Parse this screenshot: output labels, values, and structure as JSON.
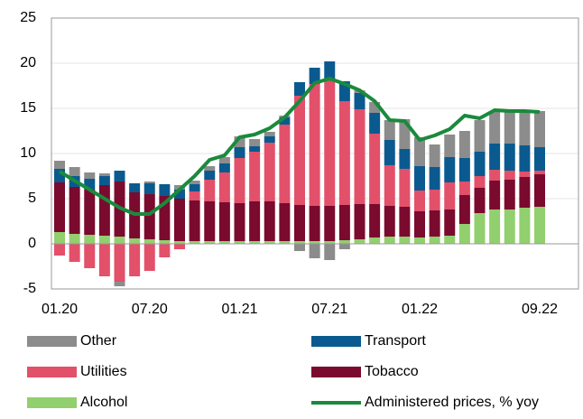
{
  "chart_data": {
    "type": "bar",
    "categories": [
      "01.20",
      null,
      null,
      null,
      null,
      null,
      "07.20",
      null,
      null,
      null,
      null,
      null,
      "01.21",
      null,
      null,
      null,
      null,
      null,
      "07.21",
      null,
      null,
      null,
      null,
      null,
      "01.22",
      null,
      null,
      null,
      null,
      null,
      null,
      null,
      "09.22"
    ],
    "stacked": true,
    "series": [
      {
        "name": "Other",
        "color": "#8c8c8c",
        "values": [
          0.9,
          1.0,
          0.7,
          0.3,
          -0.5,
          0,
          0.2,
          0,
          0.5,
          0.4,
          0.5,
          0.7,
          1.2,
          0.8,
          0.5,
          0.2,
          -0.8,
          -1.6,
          -1.8,
          -0.6,
          0.3,
          1.2,
          2.2,
          3.3,
          3.2,
          2.5,
          2.5,
          3.0,
          3.5,
          3.6,
          3.6,
          3.8,
          4.0
        ]
      },
      {
        "name": "Transport",
        "color": "#0b5a8f",
        "values": [
          1.5,
          1.2,
          1.2,
          1.0,
          1.2,
          1.0,
          1.2,
          1.3,
          1.0,
          0.8,
          1.0,
          1.0,
          1.2,
          0.6,
          0.7,
          0.8,
          1.5,
          1.8,
          1.9,
          2.2,
          1.8,
          2.3,
          2.8,
          2.2,
          2.7,
          2.5,
          2.8,
          2.6,
          2.7,
          2.9,
          3.0,
          2.9,
          2.6
        ]
      },
      {
        "name": "Utilities",
        "color": "#e2506a",
        "values": [
          -1.3,
          -2.0,
          -2.7,
          -3.6,
          -4.2,
          -3.6,
          -3.0,
          -1.5,
          -0.6,
          1.0,
          2.4,
          3.3,
          5.0,
          5.5,
          6.5,
          8.7,
          12.1,
          13.5,
          14.1,
          11.5,
          10.5,
          7.8,
          4.5,
          4.2,
          2.3,
          2.3,
          3.0,
          1.5,
          1.3,
          1.2,
          1.0,
          0.6,
          0.4
        ]
      },
      {
        "name": "Tobacco",
        "color": "#7a0a2e",
        "values": [
          5.5,
          5.2,
          5.0,
          5.6,
          6.1,
          5.1,
          5.0,
          4.9,
          4.7,
          4.5,
          4.4,
          4.3,
          4.2,
          4.4,
          4.4,
          4.2,
          4.0,
          3.9,
          3.9,
          3.9,
          3.9,
          3.7,
          3.4,
          3.3,
          2.9,
          2.9,
          2.9,
          3.2,
          2.8,
          3.2,
          3.3,
          3.4,
          3.6
        ]
      },
      {
        "name": "Alcohol",
        "color": "#92cf6e",
        "values": [
          1.3,
          1.1,
          1.0,
          0.9,
          0.8,
          0.6,
          0.5,
          0.4,
          0.3,
          0.3,
          0.3,
          0.3,
          0.3,
          0.3,
          0.3,
          0.3,
          0.3,
          0.3,
          0.3,
          0.4,
          0.5,
          0.7,
          0.8,
          0.8,
          0.7,
          0.8,
          0.9,
          2.2,
          3.4,
          3.8,
          3.8,
          4.0,
          4.1
        ]
      },
      {
        "name": "Administered prices, % yoy",
        "color": "#1a8a3c",
        "type": "line",
        "values": [
          8.0,
          7.0,
          6.0,
          5.0,
          4.0,
          3.3,
          3.3,
          4.5,
          6.0,
          7.5,
          9.3,
          9.8,
          11.8,
          12.1,
          12.8,
          14.0,
          15.8,
          17.8,
          18.3,
          17.7,
          17.0,
          15.8,
          13.7,
          13.6,
          11.5,
          12.0,
          12.7,
          14.2,
          13.9,
          14.8,
          14.7,
          14.7,
          14.6
        ]
      }
    ],
    "ylim": [
      -5,
      25
    ],
    "yticks": [
      -5,
      0,
      5,
      10,
      15,
      20,
      25
    ],
    "grid": true,
    "legend": "bottom"
  }
}
